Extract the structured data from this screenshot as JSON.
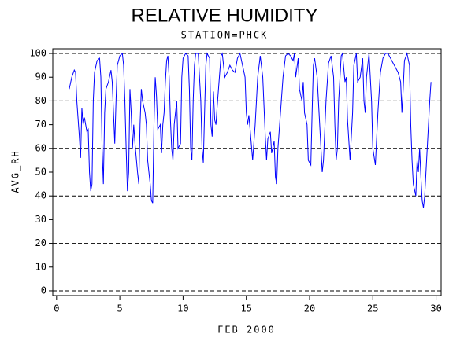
{
  "chart_data": {
    "type": "line",
    "title": "RELATIVE HUMIDITY",
    "subtitle": "STATION=PHCK",
    "y_label": "AVG_RH",
    "x_label": "FEB 2000",
    "xlim": [
      -0.3,
      30.4
    ],
    "xticks": [
      0,
      5,
      10,
      15,
      20,
      25,
      30
    ],
    "ylim": [
      -2,
      102
    ],
    "yticks": [
      0,
      10,
      20,
      30,
      40,
      50,
      60,
      70,
      80,
      90,
      100
    ],
    "grid_values": [
      0,
      20,
      40,
      60,
      80,
      100
    ],
    "series": [
      {
        "name": "AVG_RH",
        "color": "#0000ff",
        "x": [
          1.0,
          1.2,
          1.4,
          1.5,
          1.6,
          1.8,
          1.9,
          2.0,
          2.1,
          2.2,
          2.4,
          2.5,
          2.6,
          2.7,
          2.8,
          2.9,
          3.0,
          3.2,
          3.4,
          3.5,
          3.6,
          3.7,
          3.8,
          3.9,
          4.1,
          4.3,
          4.4,
          4.5,
          4.6,
          4.7,
          4.8,
          5.0,
          5.2,
          5.3,
          5.4,
          5.5,
          5.6,
          5.7,
          5.8,
          5.9,
          6.0,
          6.1,
          6.2,
          6.4,
          6.5,
          6.6,
          6.7,
          6.8,
          7.0,
          7.1,
          7.2,
          7.4,
          7.5,
          7.6,
          7.7,
          7.8,
          7.9,
          8.0,
          8.2,
          8.3,
          8.4,
          8.5,
          8.6,
          8.7,
          8.8,
          8.9,
          9.0,
          9.1,
          9.2,
          9.3,
          9.5,
          9.6,
          9.8,
          9.9,
          10.0,
          10.2,
          10.4,
          10.5,
          10.6,
          10.7,
          10.8,
          10.9,
          11.0,
          11.2,
          11.4,
          11.5,
          11.6,
          11.7,
          11.8,
          11.9,
          12.1,
          12.2,
          12.3,
          12.4,
          12.5,
          12.6,
          12.7,
          12.9,
          13.0,
          13.1,
          13.3,
          13.5,
          13.7,
          13.9,
          14.1,
          14.3,
          14.5,
          14.7,
          14.9,
          15.0,
          15.1,
          15.2,
          15.3,
          15.5,
          15.7,
          15.9,
          16.1,
          16.3,
          16.5,
          16.6,
          16.7,
          16.9,
          17.0,
          17.2,
          17.3,
          17.4,
          17.5,
          17.7,
          17.9,
          18.1,
          18.3,
          18.5,
          18.7,
          18.8,
          18.9,
          19.1,
          19.2,
          19.4,
          19.5,
          19.6,
          19.8,
          19.9,
          20.1,
          20.2,
          20.3,
          20.4,
          20.6,
          20.7,
          20.9,
          21.0,
          21.1,
          21.3,
          21.5,
          21.7,
          21.9,
          22.0,
          22.1,
          22.2,
          22.3,
          22.5,
          22.6,
          22.8,
          22.9,
          23.0,
          23.2,
          23.4,
          23.5,
          23.7,
          23.8,
          24.0,
          24.2,
          24.3,
          24.4,
          24.5,
          24.7,
          24.9,
          25.0,
          25.2,
          25.4,
          25.6,
          25.8,
          26.0,
          26.2,
          26.4,
          26.6,
          26.8,
          27.0,
          27.2,
          27.3,
          27.4,
          27.5,
          27.7,
          27.9,
          28.0,
          28.1,
          28.2,
          28.4,
          28.5,
          28.6,
          28.7,
          28.8,
          28.9,
          29.0,
          29.1,
          29.3,
          29.5,
          29.6
        ],
        "values": [
          85,
          90,
          93,
          92,
          80,
          65,
          56,
          77,
          70,
          73,
          67,
          68,
          50,
          42,
          45,
          80,
          92,
          97,
          98,
          90,
          60,
          45,
          75,
          85,
          88,
          93,
          88,
          75,
          62,
          80,
          95,
          99,
          100,
          95,
          80,
          60,
          42,
          50,
          85,
          75,
          60,
          70,
          62,
          50,
          45,
          70,
          85,
          80,
          75,
          70,
          55,
          45,
          38,
          37,
          70,
          90,
          82,
          68,
          70,
          58,
          70,
          75,
          88,
          97,
          99,
          90,
          72,
          60,
          55,
          70,
          80,
          60,
          62,
          90,
          98,
          100,
          99,
          85,
          60,
          55,
          80,
          95,
          100,
          100,
          80,
          60,
          54,
          75,
          95,
          100,
          98,
          70,
          65,
          84,
          72,
          70,
          78,
          92,
          99,
          100,
          90,
          92,
          95,
          93,
          92,
          98,
          100,
          95,
          90,
          75,
          70,
          74,
          68,
          55,
          70,
          90,
          99,
          90,
          65,
          55,
          64,
          67,
          58,
          63,
          48,
          45,
          60,
          75,
          90,
          99,
          100,
          99,
          97,
          100,
          90,
          98,
          85,
          80,
          88,
          75,
          70,
          55,
          53,
          75,
          95,
          98,
          90,
          80,
          60,
          50,
          55,
          80,
          96,
          99,
          90,
          70,
          55,
          60,
          80,
          99,
          100,
          88,
          90,
          72,
          55,
          75,
          95,
          100,
          88,
          90,
          98,
          80,
          75,
          90,
          100,
          80,
          60,
          53,
          75,
          92,
          98,
          100,
          100,
          98,
          96,
          94,
          92,
          88,
          75,
          85,
          97,
          100,
          95,
          70,
          55,
          45,
          40,
          55,
          50,
          60,
          48,
          38,
          35,
          40,
          60,
          80,
          88
        ]
      }
    ]
  }
}
